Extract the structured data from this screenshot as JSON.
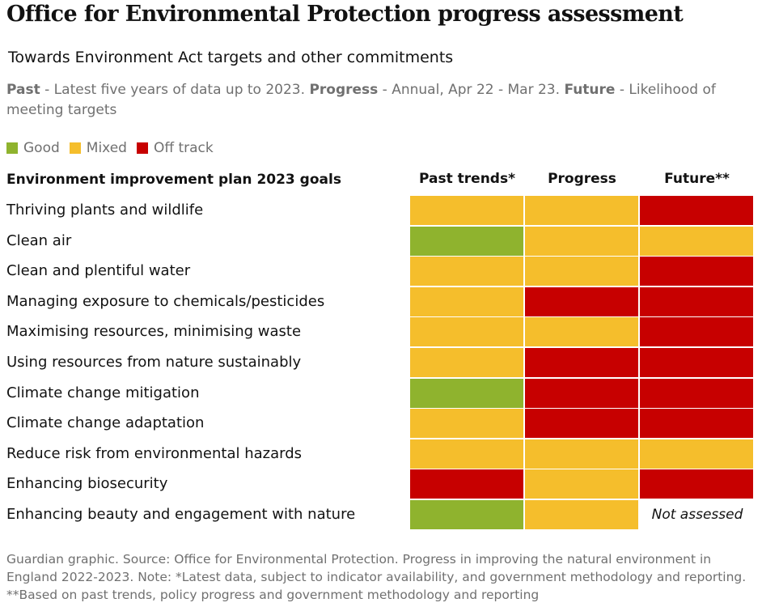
{
  "title": "Office for Environmental Protection progress assessment",
  "subtitle": "Towards Environment Act targets and other commitments",
  "description": {
    "past_label": "Past",
    "past_text": " - Latest five years of data up to 2023. ",
    "progress_label": "Progress",
    "progress_text": " - Annual, Apr 22 - Mar 23. ",
    "future_label": "Future",
    "future_text": " - Likelihood of meeting targets"
  },
  "legend": [
    {
      "label": "Good",
      "color": "#8fb32e"
    },
    {
      "label": "Mixed",
      "color": "#f5be2c"
    },
    {
      "label": "Off track",
      "color": "#c70000"
    }
  ],
  "colors": {
    "Good": "#8fb32e",
    "Mixed": "#f5be2c",
    "Off track": "#c70000"
  },
  "chart_data": {
    "type": "heatmap",
    "row_header": "Environment improvement plan 2023 goals",
    "columns": [
      "Past trends*",
      "Progress",
      "Future**"
    ],
    "rows": [
      {
        "goal": "Thriving plants and wildlife",
        "values": [
          "Mixed",
          "Mixed",
          "Off track"
        ]
      },
      {
        "goal": "Clean air",
        "values": [
          "Good",
          "Mixed",
          "Mixed"
        ]
      },
      {
        "goal": "Clean and plentiful water",
        "values": [
          "Mixed",
          "Mixed",
          "Off track"
        ]
      },
      {
        "goal": "Managing exposure to chemicals/pesticides",
        "values": [
          "Mixed",
          "Off track",
          "Off track"
        ]
      },
      {
        "goal": "Maximising resources, minimising waste",
        "values": [
          "Mixed",
          "Mixed",
          "Off track"
        ]
      },
      {
        "goal": "Using resources from nature sustainably",
        "values": [
          "Mixed",
          "Off track",
          "Off track"
        ]
      },
      {
        "goal": "Climate change mitigation",
        "values": [
          "Good",
          "Off track",
          "Off track"
        ]
      },
      {
        "goal": "Climate change adaptation",
        "values": [
          "Mixed",
          "Off track",
          "Off track"
        ]
      },
      {
        "goal": "Reduce risk from environmental hazards",
        "values": [
          "Mixed",
          "Mixed",
          "Mixed"
        ]
      },
      {
        "goal": "Enhancing biosecurity",
        "values": [
          "Off track",
          "Mixed",
          "Off track"
        ]
      },
      {
        "goal": "Enhancing beauty and engagement with nature",
        "values": [
          "Good",
          "Mixed",
          "Not assessed"
        ]
      }
    ]
  },
  "source": "Guardian graphic. Source: Office for Environmental Protection. Progress in improving the natural environment in England 2022-2023. Note: *Latest data, subject to indicator availability, and government methodology and reporting. **Based on past trends, policy progress and government methodology and reporting"
}
